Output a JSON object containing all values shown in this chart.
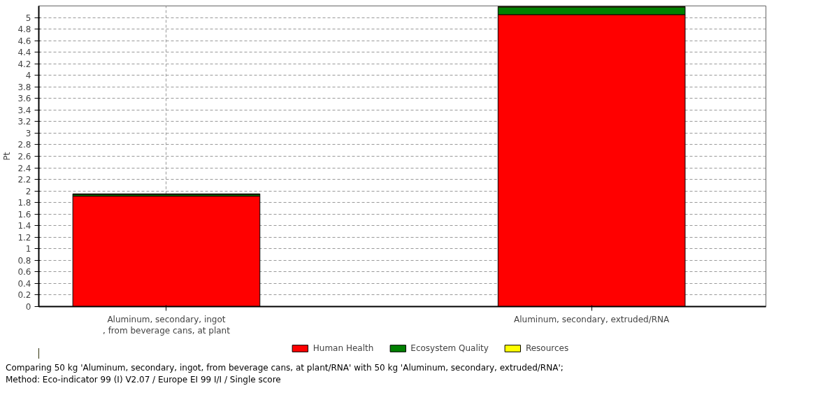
{
  "chart_data": {
    "type": "bar",
    "stacked": true,
    "ylabel": "Pt",
    "categories": [
      "Aluminum, secondary, ingot\n, from beverage cans, at plant",
      "Aluminum, secondary, extruded/RNA"
    ],
    "series": [
      {
        "name": "Human Health",
        "color": "#ff0000",
        "values": [
          1.91,
          5.05
        ]
      },
      {
        "name": "Ecosystem Quality",
        "color": "#008000",
        "values": [
          0.03,
          0.13
        ]
      },
      {
        "name": "Resources",
        "color": "#ffff00",
        "values": [
          0.01,
          0.01
        ]
      }
    ],
    "ylim": [
      0,
      5.2
    ],
    "yticks": [
      0,
      0.2,
      0.4,
      0.6,
      0.8,
      1,
      1.2,
      1.4,
      1.6,
      1.8,
      2,
      2.2,
      2.4,
      2.6,
      2.8,
      3,
      3.2,
      3.4,
      3.6,
      3.8,
      4,
      4.2,
      4.4,
      4.6,
      4.8,
      5
    ],
    "grid": true,
    "legend": "bottom",
    "annotations": [
      "Comparing 50 kg 'Aluminum, secondary, ingot, from beverage cans, at plant/RNA' with 50 kg 'Aluminum, secondary, extruded/RNA';",
      "Method: Eco-indicator 99 (I) V2.07 /  Europe EI 99 I/I / Single score"
    ]
  }
}
